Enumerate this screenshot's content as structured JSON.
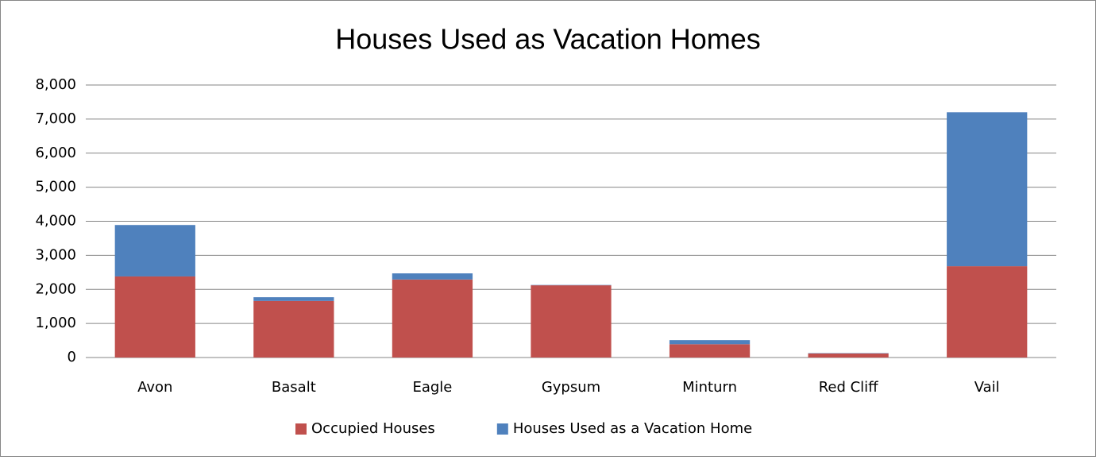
{
  "chart_data": {
    "type": "stacked_bar",
    "title": "Houses Used as Vacation Homes",
    "categories": [
      "Avon",
      "Basalt",
      "Eagle",
      "Gypsum",
      "Minturn",
      "Red Cliff",
      "Vail"
    ],
    "series": [
      {
        "name": "Occupied Houses",
        "color": "#c0504d",
        "values": [
          2380,
          1660,
          2290,
          2120,
          390,
          120,
          2680
        ]
      },
      {
        "name": "Houses Used as a Vacation Home",
        "color": "#4f81bd",
        "values": [
          1510,
          110,
          180,
          10,
          120,
          10,
          4520
        ]
      }
    ],
    "ylim": [
      0,
      8000
    ],
    "yticks": [
      0,
      {
        "value": 1000,
        "label": "1,000"
      },
      {
        "value": 2000,
        "label": "2,000"
      },
      {
        "value": 3000,
        "label": "3,000"
      },
      {
        "value": 4000,
        "label": "4,000"
      },
      {
        "value": 5000,
        "label": "5,000"
      },
      {
        "value": 6000,
        "label": "6,000"
      },
      {
        "value": 7000,
        "label": "7,000"
      },
      {
        "value": 8000,
        "label": "8,000"
      }
    ],
    "grid": true,
    "legend": "bottom"
  }
}
